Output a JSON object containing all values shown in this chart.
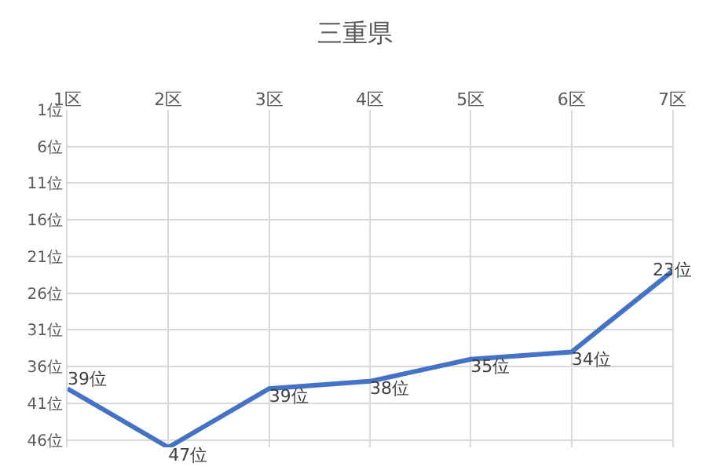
{
  "chart_data": {
    "type": "line",
    "title": "三重県",
    "categories": [
      "1区",
      "2区",
      "3区",
      "4区",
      "5区",
      "6区",
      "7区"
    ],
    "series": [
      {
        "color": "#4472c4",
        "values": [
          39,
          47,
          39,
          38,
          35,
          34,
          23
        ],
        "value_labels": [
          "39位",
          "47位",
          "39位",
          "38位",
          "35位",
          "34位",
          "23位"
        ]
      }
    ],
    "ylim": [
      47,
      1
    ],
    "yticks": [
      {
        "value": 1,
        "label": "1位"
      },
      {
        "value": 6,
        "label": "6位"
      },
      {
        "value": 11,
        "label": "11位"
      },
      {
        "value": 16,
        "label": "16位"
      },
      {
        "value": 21,
        "label": "21位"
      },
      {
        "value": 26,
        "label": "26位"
      },
      {
        "value": 31,
        "label": "31位"
      },
      {
        "value": 36,
        "label": "36位"
      },
      {
        "value": 41,
        "label": "41位"
      },
      {
        "value": 46,
        "label": "46位"
      }
    ],
    "grid": true,
    "marker": "none",
    "line_style": "solid"
  }
}
